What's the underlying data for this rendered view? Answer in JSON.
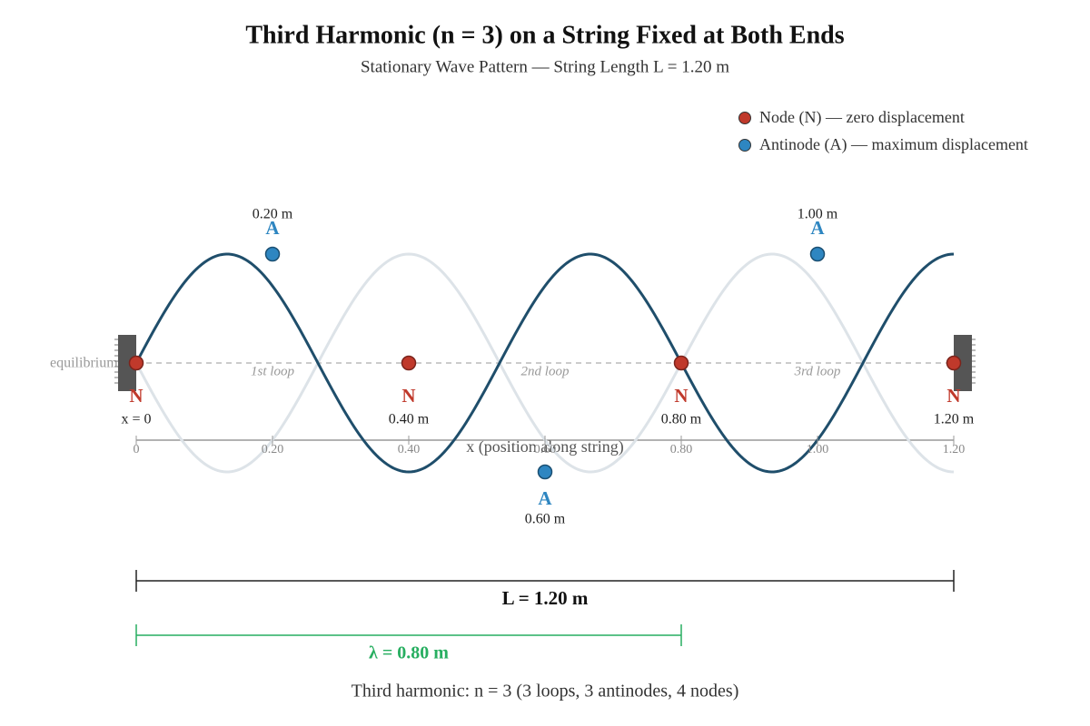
{
  "title": "Third Harmonic (n = 3) on a String Fixed at Both Ends",
  "subtitle": "Stationary Wave Pattern — String Length L = 1.20 m",
  "legend": [
    {
      "label": "Node (N) — zero displacement",
      "color": "#c0392b"
    },
    {
      "label": "Antinode (A) — maximum displacement",
      "color": "#2e86c1"
    }
  ],
  "equilibrium_label": "equilibrium",
  "nodes": [
    {
      "symbol": "N",
      "label": "x = 0"
    },
    {
      "symbol": "N",
      "label": "0.40 m"
    },
    {
      "symbol": "N",
      "label": "0.80 m"
    },
    {
      "symbol": "N",
      "label": "1.20 m"
    }
  ],
  "antinodes": [
    {
      "symbol": "A",
      "label": "0.20 m"
    },
    {
      "symbol": "A",
      "label": "0.60 m"
    },
    {
      "symbol": "A",
      "label": "1.00 m"
    }
  ],
  "loops": [
    "1st loop",
    "2nd loop",
    "3rd loop"
  ],
  "axis": {
    "label": "x (position along string)",
    "ticks": [
      "0",
      "0.20",
      "0.40",
      "0.60",
      "0.80",
      "1.00",
      "1.20"
    ]
  },
  "length_label": "L = 1.20 m",
  "wavelength_label": "λ = 0.80 m",
  "caption": "Third harmonic: n = 3 (3 loops, 3 antinodes, 4 nodes)"
}
